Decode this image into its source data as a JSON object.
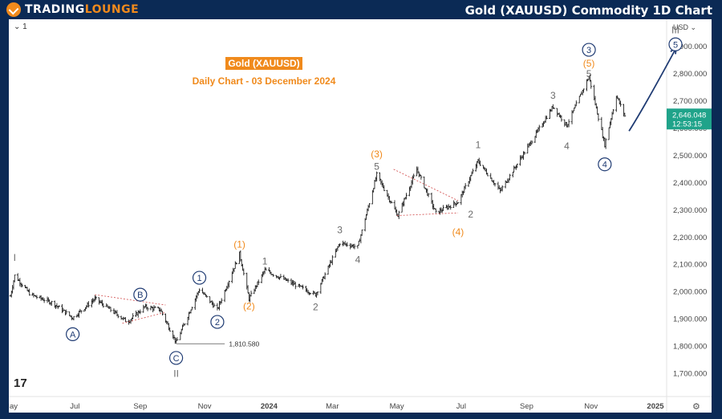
{
  "header": {
    "logo_text_1": "TRADING",
    "logo_text_2": "LOUNGE",
    "chart_title": "Gold (XAUUSD) Commodity 1D Chart"
  },
  "toolbar": {
    "interval": "1"
  },
  "annotation": {
    "title": "Gold (XAUUSD)",
    "subtitle": "Daily Chart - 03 December 2024"
  },
  "colors": {
    "frame": "#0b2a55",
    "orange": "#f08a1c",
    "navy": "#1f3b73",
    "gray": "#6b6b6b",
    "last_price_bg": "#1fa38a"
  },
  "chart_data": {
    "type": "ohlc",
    "currency_label": "USD",
    "ylim": [
      1640,
      3000
    ],
    "yticks": [
      "2,900.000",
      "2,800.000",
      "2,700.000",
      "2,600.000",
      "2,500.000",
      "2,400.000",
      "2,300.000",
      "2,200.000",
      "2,100.000",
      "2,000.000",
      "1,900.000",
      "1,800.000",
      "1,700.000"
    ],
    "ytick_values": [
      2900,
      2800,
      2700,
      2600,
      2500,
      2400,
      2300,
      2200,
      2100,
      2000,
      1900,
      1800,
      1700
    ],
    "xticks": [
      "May",
      "Jul",
      "Sep",
      "Nov",
      "2024",
      "Mar",
      "May",
      "Jul",
      "Sep",
      "Nov",
      "2025"
    ],
    "last_price": "2,646.048",
    "countdown": "12:53:15",
    "low_label": "1,810.580",
    "price_path": [
      [
        "2023-05-01",
        1985
      ],
      [
        "2023-05-05",
        2060
      ],
      [
        "2023-05-20",
        1990
      ],
      [
        "2023-06-10",
        1960
      ],
      [
        "2023-06-29",
        1905
      ],
      [
        "2023-07-20",
        1975
      ],
      [
        "2023-08-20",
        1890
      ],
      [
        "2023-09-05",
        1945
      ],
      [
        "2023-09-20",
        1935
      ],
      [
        "2023-10-05",
        1815
      ],
      [
        "2023-10-27",
        2010
      ],
      [
        "2023-11-13",
        1935
      ],
      [
        "2023-12-04",
        2140
      ],
      [
        "2023-12-13",
        1975
      ],
      [
        "2023-12-28",
        2080
      ],
      [
        "2024-02-14",
        1990
      ],
      [
        "2024-03-08",
        2180
      ],
      [
        "2024-03-25",
        2165
      ],
      [
        "2024-04-12",
        2430
      ],
      [
        "2024-05-02",
        2280
      ],
      [
        "2024-05-20",
        2450
      ],
      [
        "2024-06-07",
        2290
      ],
      [
        "2024-06-28",
        2330
      ],
      [
        "2024-07-17",
        2480
      ],
      [
        "2024-08-07",
        2370
      ],
      [
        "2024-09-26",
        2680
      ],
      [
        "2024-10-09",
        2610
      ],
      [
        "2024-10-30",
        2790
      ],
      [
        "2024-11-14",
        2540
      ],
      [
        "2024-11-25",
        2720
      ],
      [
        "2024-12-03",
        2646
      ]
    ],
    "forecast_path": [
      [
        "2024-12-07",
        2590
      ],
      [
        "2024-12-25",
        2730
      ],
      [
        "2025-01-20",
        2890
      ]
    ],
    "wave_labels": [
      {
        "text": "I",
        "date": "2023-05-05",
        "price": 2125,
        "style": "gray"
      },
      {
        "text": "A",
        "date": "2023-06-29",
        "price": 1845,
        "style": "navy-circle"
      },
      {
        "text": "B",
        "date": "2023-09-01",
        "price": 1990,
        "style": "navy-circle"
      },
      {
        "text": "C",
        "date": "2023-10-05",
        "price": 1758,
        "style": "navy-circle"
      },
      {
        "text": "II",
        "date": "2023-10-05",
        "price": 1700,
        "style": "gray"
      },
      {
        "text": "1",
        "date": "2023-10-27",
        "price": 2052,
        "style": "navy-circle"
      },
      {
        "text": "2",
        "date": "2023-11-13",
        "price": 1890,
        "style": "navy-circle"
      },
      {
        "text": "(1)",
        "date": "2023-12-04",
        "price": 2175,
        "style": "orange"
      },
      {
        "text": "(2)",
        "date": "2023-12-13",
        "price": 1948,
        "style": "orange"
      },
      {
        "text": "1",
        "date": "2023-12-28",
        "price": 2112,
        "style": "gray"
      },
      {
        "text": "2",
        "date": "2024-02-14",
        "price": 1945,
        "style": "gray"
      },
      {
        "text": "3",
        "date": "2024-03-08",
        "price": 2228,
        "style": "gray"
      },
      {
        "text": "4",
        "date": "2024-03-25",
        "price": 2118,
        "style": "gray"
      },
      {
        "text": "(3)",
        "date": "2024-04-12",
        "price": 2505,
        "style": "orange"
      },
      {
        "text": "5",
        "date": "2024-04-12",
        "price": 2460,
        "style": "gray"
      },
      {
        "text": "(4)",
        "date": "2024-06-28",
        "price": 2220,
        "style": "orange"
      },
      {
        "text": "2",
        "date": "2024-07-10",
        "price": 2285,
        "style": "gray"
      },
      {
        "text": "1",
        "date": "2024-07-17",
        "price": 2540,
        "style": "gray"
      },
      {
        "text": "3",
        "date": "2024-09-26",
        "price": 2720,
        "style": "gray"
      },
      {
        "text": "4",
        "date": "2024-10-09",
        "price": 2535,
        "style": "gray"
      },
      {
        "text": "3",
        "date": "2024-10-30",
        "price": 2888,
        "style": "navy-circle"
      },
      {
        "text": "(5)",
        "date": "2024-10-30",
        "price": 2838,
        "style": "orange"
      },
      {
        "text": "5",
        "date": "2024-10-30",
        "price": 2800,
        "style": "gray"
      },
      {
        "text": "4",
        "date": "2024-11-14",
        "price": 2468,
        "style": "navy-circle"
      },
      {
        "text": "III",
        "date": "2025-01-20",
        "price": 2960,
        "style": "gray"
      },
      {
        "text": "5",
        "date": "2025-01-20",
        "price": 2908,
        "style": "navy-circle"
      }
    ]
  }
}
